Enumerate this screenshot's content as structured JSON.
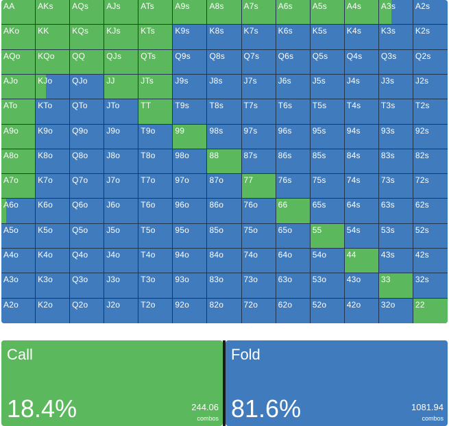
{
  "colors": {
    "call": "#5cb85c",
    "fold": "#3f7bbd",
    "divider": "#1b1b1b"
  },
  "grid": {
    "rows": [
      [
        [
          "AA",
          1
        ],
        [
          "AKs",
          1
        ],
        [
          "AQs",
          1
        ],
        [
          "AJs",
          1
        ],
        [
          "ATs",
          1
        ],
        [
          "A9s",
          1
        ],
        [
          "A8s",
          1
        ],
        [
          "A7s",
          1
        ],
        [
          "A6s",
          1
        ],
        [
          "A5s",
          1
        ],
        [
          "A4s",
          1
        ],
        [
          "A3s",
          0.36
        ],
        [
          "A2s",
          0
        ]
      ],
      [
        [
          "AKo",
          1
        ],
        [
          "KK",
          1
        ],
        [
          "KQs",
          1
        ],
        [
          "KJs",
          1
        ],
        [
          "KTs",
          1
        ],
        [
          "K9s",
          0
        ],
        [
          "K8s",
          0
        ],
        [
          "K7s",
          0
        ],
        [
          "K6s",
          0
        ],
        [
          "K5s",
          0
        ],
        [
          "K4s",
          0
        ],
        [
          "K3s",
          0
        ],
        [
          "K2s",
          0
        ]
      ],
      [
        [
          "AQo",
          1
        ],
        [
          "KQo",
          1
        ],
        [
          "QQ",
          1
        ],
        [
          "QJs",
          1
        ],
        [
          "QTs",
          1
        ],
        [
          "Q9s",
          0
        ],
        [
          "Q8s",
          0
        ],
        [
          "Q7s",
          0
        ],
        [
          "Q6s",
          0
        ],
        [
          "Q5s",
          0
        ],
        [
          "Q4s",
          0
        ],
        [
          "Q3s",
          0
        ],
        [
          "Q2s",
          0
        ]
      ],
      [
        [
          "AJo",
          1
        ],
        [
          "KJo",
          0.3
        ],
        [
          "QJo",
          0
        ],
        [
          "JJ",
          1
        ],
        [
          "JTs",
          1
        ],
        [
          "J9s",
          0
        ],
        [
          "J8s",
          0
        ],
        [
          "J7s",
          0
        ],
        [
          "J6s",
          0
        ],
        [
          "J5s",
          0
        ],
        [
          "J4s",
          0
        ],
        [
          "J3s",
          0
        ],
        [
          "J2s",
          0
        ]
      ],
      [
        [
          "ATo",
          1
        ],
        [
          "KTo",
          0
        ],
        [
          "QTo",
          0
        ],
        [
          "JTo",
          0
        ],
        [
          "TT",
          1
        ],
        [
          "T9s",
          0
        ],
        [
          "T8s",
          0
        ],
        [
          "T7s",
          0
        ],
        [
          "T6s",
          0
        ],
        [
          "T5s",
          0
        ],
        [
          "T4s",
          0
        ],
        [
          "T3s",
          0
        ],
        [
          "T2s",
          0
        ]
      ],
      [
        [
          "A9o",
          1
        ],
        [
          "K9o",
          0
        ],
        [
          "Q9o",
          0
        ],
        [
          "J9o",
          0
        ],
        [
          "T9o",
          0
        ],
        [
          "99",
          1
        ],
        [
          "98s",
          0
        ],
        [
          "97s",
          0
        ],
        [
          "96s",
          0
        ],
        [
          "95s",
          0
        ],
        [
          "94s",
          0
        ],
        [
          "93s",
          0
        ],
        [
          "92s",
          0
        ]
      ],
      [
        [
          "A8o",
          1
        ],
        [
          "K8o",
          0
        ],
        [
          "Q8o",
          0
        ],
        [
          "J8o",
          0
        ],
        [
          "T8o",
          0
        ],
        [
          "98o",
          0
        ],
        [
          "88",
          1
        ],
        [
          "87s",
          0
        ],
        [
          "86s",
          0
        ],
        [
          "85s",
          0
        ],
        [
          "84s",
          0
        ],
        [
          "83s",
          0
        ],
        [
          "82s",
          0
        ]
      ],
      [
        [
          "A7o",
          1
        ],
        [
          "K7o",
          0
        ],
        [
          "Q7o",
          0
        ],
        [
          "J7o",
          0
        ],
        [
          "T7o",
          0
        ],
        [
          "97o",
          0
        ],
        [
          "87o",
          0
        ],
        [
          "77",
          1
        ],
        [
          "76s",
          0
        ],
        [
          "75s",
          0
        ],
        [
          "74s",
          0
        ],
        [
          "73s",
          0
        ],
        [
          "72s",
          0
        ]
      ],
      [
        [
          "A6o",
          0.14
        ],
        [
          "K6o",
          0
        ],
        [
          "Q6o",
          0
        ],
        [
          "J6o",
          0
        ],
        [
          "T6o",
          0
        ],
        [
          "96o",
          0
        ],
        [
          "86o",
          0
        ],
        [
          "76o",
          0
        ],
        [
          "66",
          1
        ],
        [
          "65s",
          0
        ],
        [
          "64s",
          0
        ],
        [
          "63s",
          0
        ],
        [
          "62s",
          0
        ]
      ],
      [
        [
          "A5o",
          0
        ],
        [
          "K5o",
          0
        ],
        [
          "Q5o",
          0
        ],
        [
          "J5o",
          0
        ],
        [
          "T5o",
          0
        ],
        [
          "95o",
          0
        ],
        [
          "85o",
          0
        ],
        [
          "75o",
          0
        ],
        [
          "65o",
          0
        ],
        [
          "55",
          1
        ],
        [
          "54s",
          0
        ],
        [
          "53s",
          0
        ],
        [
          "52s",
          0
        ]
      ],
      [
        [
          "A4o",
          0
        ],
        [
          "K4o",
          0
        ],
        [
          "Q4o",
          0
        ],
        [
          "J4o",
          0
        ],
        [
          "T4o",
          0
        ],
        [
          "94o",
          0
        ],
        [
          "84o",
          0
        ],
        [
          "74o",
          0
        ],
        [
          "64o",
          0
        ],
        [
          "54o",
          0
        ],
        [
          "44",
          1
        ],
        [
          "43s",
          0
        ],
        [
          "42s",
          0
        ]
      ],
      [
        [
          "A3o",
          0
        ],
        [
          "K3o",
          0
        ],
        [
          "Q3o",
          0
        ],
        [
          "J3o",
          0
        ],
        [
          "T3o",
          0
        ],
        [
          "93o",
          0
        ],
        [
          "83o",
          0
        ],
        [
          "73o",
          0
        ],
        [
          "63o",
          0
        ],
        [
          "53o",
          0
        ],
        [
          "43o",
          0
        ],
        [
          "33",
          1
        ],
        [
          "32s",
          0
        ]
      ],
      [
        [
          "A2o",
          0
        ],
        [
          "K2o",
          0
        ],
        [
          "Q2o",
          0
        ],
        [
          "J2o",
          0
        ],
        [
          "T2o",
          0
        ],
        [
          "92o",
          0
        ],
        [
          "82o",
          0
        ],
        [
          "72o",
          0
        ],
        [
          "62o",
          0
        ],
        [
          "52o",
          0
        ],
        [
          "42o",
          0
        ],
        [
          "32o",
          0
        ],
        [
          "22",
          1
        ]
      ]
    ]
  },
  "summary": {
    "call": {
      "label": "Call",
      "percent": "18.4%",
      "combos": "244.06",
      "combos_label": "combos"
    },
    "fold": {
      "label": "Fold",
      "percent": "81.6%",
      "combos": "1081.94",
      "combos_label": "combos"
    }
  }
}
